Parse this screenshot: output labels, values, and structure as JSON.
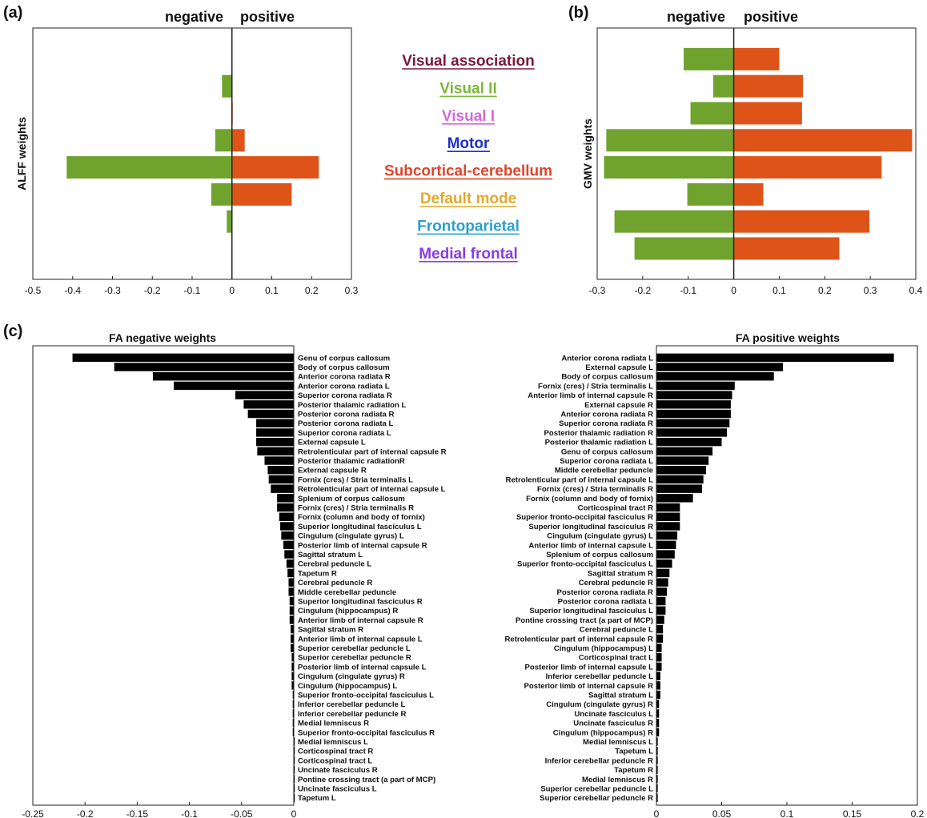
{
  "colors": {
    "negative": "#6fa32e",
    "positive": "#de5318",
    "fa": "#000000"
  },
  "panel_labels": {
    "a": "(a)",
    "b": "(b)",
    "c": "(c)"
  },
  "legend": [
    {
      "label": "Visual association",
      "color": "#7a1a3a"
    },
    {
      "label": "Visual II",
      "color": "#7ab83a"
    },
    {
      "label": "Visual I",
      "color": "#d26ad6"
    },
    {
      "label": "Motor",
      "color": "#1f2fd0"
    },
    {
      "label": "Subcortical-cerebellum",
      "color": "#e0442c"
    },
    {
      "label": "Default mode",
      "color": "#e0aa2a"
    },
    {
      "label": "Frontoparietal",
      "color": "#2aa0d0"
    },
    {
      "label": "Medial frontal",
      "color": "#8a3ae8"
    }
  ],
  "chart_data": [
    {
      "id": "a",
      "type": "bar",
      "orientation": "horizontal",
      "header_negative": "negative",
      "header_positive": "positive",
      "ylabel": "ALFF weights",
      "xlim": [
        -0.5,
        0.3
      ],
      "xticks": [
        "-0.5",
        "-0.4",
        "-0.3",
        "-0.2",
        "-0.1",
        "0",
        "0.1",
        "0.2",
        "0.3"
      ],
      "categories": [
        "Visual association",
        "Visual II",
        "Visual I",
        "Motor",
        "Subcortical-cerebellum",
        "Default mode",
        "Frontoparietal",
        "Medial frontal"
      ],
      "series": [
        {
          "values": [
            0,
            -0.025,
            0,
            -0.042,
            -0.415,
            -0.052,
            -0.013,
            0
          ]
        },
        {
          "values": [
            0,
            0,
            0.002,
            0.032,
            0.218,
            0.15,
            0,
            0
          ]
        }
      ]
    },
    {
      "id": "b",
      "type": "bar",
      "orientation": "horizontal",
      "header_negative": "negative",
      "header_positive": "positive",
      "ylabel": "GMV weights",
      "xlim": [
        -0.3,
        0.4
      ],
      "xticks": [
        "-0.3",
        "-0.2",
        "-0.1",
        "0",
        "0.1",
        "0.2",
        "0.3",
        "0.4"
      ],
      "categories": [
        "Visual association",
        "Visual II",
        "Visual I",
        "Motor",
        "Subcortical-cerebellum",
        "Default mode",
        "Frontoparietal",
        "Medial frontal"
      ],
      "series": [
        {
          "values": [
            -0.11,
            -0.045,
            -0.095,
            -0.28,
            -0.285,
            -0.102,
            -0.262,
            -0.218
          ]
        },
        {
          "values": [
            0.1,
            0.152,
            0.15,
            0.392,
            0.325,
            0.065,
            0.298,
            0.232
          ]
        }
      ]
    },
    {
      "id": "c-neg",
      "type": "bar",
      "orientation": "horizontal",
      "title": "FA negative weights",
      "xlim": [
        -0.25,
        0
      ],
      "xticks": [
        "-0.25",
        "-0.2",
        "-0.15",
        "-0.1",
        "-0.05",
        "0"
      ],
      "categories": [
        "Genu of corpus callosum",
        "Body of corpus callosum",
        "Anterior corona radiata R",
        "Anterior corona radiata L",
        "Superior corona radiata R",
        "Posterior thalamic radiation L",
        "Posterior corona radiata R",
        "Posterior corona radiata L",
        "Superior corona radiata L",
        "External capsule L",
        "Retrolenticular part of internal capsule R",
        "Posterior thalamic radiationR",
        "External capsule R",
        "Fornix (cres) / Stria terminalis L",
        "Retrolenticular part of internal capsule L",
        "Splenium of corpus callosum",
        "Fornix (cres) / Stria terminalis R",
        "Fornix (column and body of fornix)",
        "Superior longitudinal fasciculus L",
        "Cingulum (cingulate gyrus) L",
        "Posterior limb of internal capsule R",
        "Sagittal stratum L",
        "Cerebral peduncle L",
        "Tapetum R",
        "Cerebral peduncle R",
        "Middle cerebellar peduncle",
        "Superior longitudinal fasciculus R",
        "Cingulum (hippocampus) R",
        "Anterior limb of internal capsule R",
        "Sagittal stratum R",
        "Anterior limb of internal capsule L",
        "Superior cerebellar peduncle L",
        "Superior cerebellar peduncle R",
        "Posterior limb of internal capsule L",
        "Cingulum (cingulate gyrus) R",
        "Cingulum (hippocampus) L",
        "Superior fronto-occipital fasciculus L",
        "Inferior cerebellar peduncle L",
        "Inferior cerebellar peduncle R",
        "Medial lemniscus R",
        "Superior fronto-occipital fasciculus R",
        "Medial lemniscus L",
        "Corticospinal tract R",
        "Corticospinal tract L",
        "Uncinate fasciculus R",
        "Pontine crossing tract (a part of MCP)",
        "Uncinate fasciculus L",
        "Tapetum L"
      ],
      "values": [
        -0.212,
        -0.172,
        -0.135,
        -0.115,
        -0.056,
        -0.048,
        -0.044,
        -0.036,
        -0.036,
        -0.036,
        -0.035,
        -0.028,
        -0.025,
        -0.024,
        -0.022,
        -0.016,
        -0.016,
        -0.014,
        -0.013,
        -0.012,
        -0.01,
        -0.009,
        -0.007,
        -0.006,
        -0.005,
        -0.005,
        -0.004,
        -0.004,
        -0.004,
        -0.003,
        -0.003,
        -0.003,
        -0.002,
        -0.002,
        -0.002,
        -0.002,
        -0.001,
        -0.001,
        -0.001,
        -0.001,
        -0.001,
        0,
        0,
        0,
        0,
        0,
        0,
        0
      ]
    },
    {
      "id": "c-pos",
      "type": "bar",
      "orientation": "horizontal",
      "title": "FA positive weights",
      "xlim": [
        0,
        0.2
      ],
      "xticks": [
        "0",
        "0.05",
        "0.1",
        "0.15",
        "0.2"
      ],
      "categories": [
        "Anterior corona radiata L",
        "External capsule L",
        "Body of corpus callosum",
        "Fornix (cres) / Stria terminalis L",
        "Anterior limb of internal capsule R",
        "External capsule R",
        "Anterior corona radiata R",
        "Superior corona radiata R",
        "Posterior thalamic radiation R",
        "Posterior thalamic radiation L",
        "Genu of corpus callosum",
        "Superior corona radiata L",
        "Middle cerebellar peduncle",
        "Retrolenticular part of internal capsule L",
        "Fornix (cres) / Stria terminalis R",
        "Fornix (column and body of fornix)",
        "Corticospinal tract R",
        "Superior fronto-occipital fasciculus R",
        "Superior longitudinal fasciculus R",
        "Cingulum (cingulate gyrus) L",
        "Anterior limb of internal capsule L",
        "Splenium of corpus callosum",
        "Superior fronto-occipital fasciculus L",
        "Sagittal stratum R",
        "Cerebral peduncle R",
        "Posterior corona radiata R",
        "Posterior corona radiata L",
        "Superior longitudinal fasciculus L",
        "Pontine crossing tract (a part of MCP)",
        "Cerebral peduncle L",
        "Retrolenticular part of internal capsule R",
        "Cingulum (hippocampus) L",
        "Corticospinal tract L",
        "Posterior limb of internal capsule L",
        "Inferior cerebellar peduncle L",
        "Posterior limb of internal capsule R",
        "Sagittal stratum L",
        "Cingulum (cingulate gyrus) R",
        "Uncinate fasciculus L",
        "Uncinate fasciculus R",
        "Cingulum (hippocampus) R",
        "Medial lemniscus L",
        "Tapetum L",
        "Inferior cerebellar peduncle R",
        "Tapetum R",
        "Medial lemniscus R",
        "Superior cerebellar peduncle L",
        "Superior cerebellar peduncle R"
      ],
      "values": [
        0.182,
        0.097,
        0.09,
        0.06,
        0.058,
        0.057,
        0.057,
        0.056,
        0.054,
        0.05,
        0.043,
        0.04,
        0.038,
        0.036,
        0.035,
        0.028,
        0.018,
        0.018,
        0.018,
        0.016,
        0.015,
        0.014,
        0.012,
        0.01,
        0.009,
        0.008,
        0.007,
        0.007,
        0.006,
        0.005,
        0.005,
        0.004,
        0.004,
        0.004,
        0.003,
        0.003,
        0.003,
        0.002,
        0.002,
        0.002,
        0.002,
        0.001,
        0.001,
        0.001,
        0.001,
        0.001,
        0.001,
        0.001
      ]
    }
  ]
}
